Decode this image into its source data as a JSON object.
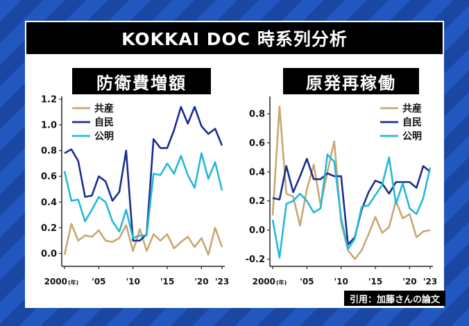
{
  "title": "KOKKAI DOC 時系列分析",
  "citation": "引用：加藤さんの論文",
  "colors": {
    "kyosan": "#c9a671",
    "jimin": "#1a2d8c",
    "komei": "#24b8d8"
  },
  "chart_data": [
    {
      "type": "line",
      "title": "防衛費増額",
      "x": [
        2000,
        2001,
        2002,
        2003,
        2004,
        2005,
        2006,
        2007,
        2008,
        2009,
        2010,
        2011,
        2012,
        2013,
        2014,
        2015,
        2016,
        2017,
        2018,
        2019,
        2020,
        2021,
        2022,
        2023
      ],
      "xticks": [
        2000,
        2005,
        2010,
        2015,
        2020,
        2023
      ],
      "xtick_labels": [
        "2000",
        "'05",
        "'10",
        "'15",
        "'20",
        "'23"
      ],
      "year_unit_label": "(年)",
      "ylim": [
        -0.1,
        1.2
      ],
      "yticks": [
        0.0,
        0.2,
        0.4,
        0.6,
        0.8,
        1.0,
        1.2
      ],
      "ytick_labels": [
        "0.0",
        "0.2",
        "0.4",
        "0.6",
        "0.8",
        "1.0",
        "1.2"
      ],
      "legend_position": "top-left",
      "series": [
        {
          "name": "共産",
          "color": "#c9a671",
          "values": [
            -0.01,
            0.23,
            0.1,
            0.14,
            0.13,
            0.18,
            0.1,
            0.09,
            0.12,
            0.22,
            0.02,
            0.19,
            0.02,
            0.15,
            0.1,
            0.15,
            0.04,
            0.09,
            0.13,
            0.05,
            0.12,
            -0.01,
            0.2,
            0.05
          ]
        },
        {
          "name": "自民",
          "color": "#1a2d8c",
          "values": [
            0.78,
            0.81,
            0.72,
            0.44,
            0.45,
            0.6,
            0.56,
            0.41,
            0.48,
            0.8,
            0.1,
            0.1,
            0.15,
            0.89,
            0.82,
            0.82,
            0.96,
            1.14,
            1.01,
            1.14,
            0.99,
            0.93,
            0.97,
            0.84
          ]
        },
        {
          "name": "公明",
          "color": "#24b8d8",
          "values": [
            0.64,
            0.41,
            0.42,
            0.25,
            0.34,
            0.44,
            0.4,
            0.25,
            0.17,
            0.34,
            0.12,
            0.14,
            0.14,
            0.62,
            0.61,
            0.7,
            0.62,
            0.76,
            0.61,
            0.51,
            0.78,
            0.58,
            0.71,
            0.49
          ]
        }
      ]
    },
    {
      "type": "line",
      "title": "原発再稼働",
      "x": [
        2000,
        2001,
        2002,
        2003,
        2004,
        2005,
        2006,
        2007,
        2008,
        2009,
        2010,
        2011,
        2012,
        2013,
        2014,
        2015,
        2016,
        2017,
        2018,
        2019,
        2020,
        2021,
        2022,
        2023
      ],
      "xticks": [
        2000,
        2005,
        2010,
        2015,
        2020,
        2023
      ],
      "xtick_labels": [
        "2000",
        "'05",
        "'10",
        "'15",
        "'20",
        "'23"
      ],
      "year_unit_label": "(年)",
      "ylim": [
        -0.25,
        0.9
      ],
      "yticks": [
        -0.2,
        0.0,
        0.2,
        0.4,
        0.6,
        0.8
      ],
      "ytick_labels": [
        "-0.2",
        "0.0",
        "0.2",
        "0.4",
        "0.6",
        "0.8"
      ],
      "legend_position": "top-right",
      "series": [
        {
          "name": "共産",
          "color": "#c9a671",
          "values": [
            0.1,
            0.85,
            0.25,
            0.23,
            0.03,
            0.28,
            0.45,
            0.17,
            0.4,
            0.61,
            0.05,
            -0.14,
            -0.2,
            -0.14,
            -0.03,
            0.09,
            -0.02,
            0.02,
            0.2,
            0.08,
            0.11,
            -0.05,
            -0.01,
            0.0
          ]
        },
        {
          "name": "自民",
          "color": "#1a2d8c",
          "values": [
            0.22,
            0.21,
            0.44,
            0.26,
            0.37,
            0.49,
            0.35,
            0.35,
            0.39,
            0.37,
            0.37,
            -0.1,
            -0.05,
            0.14,
            0.26,
            0.34,
            0.32,
            0.25,
            0.33,
            0.33,
            0.33,
            0.29,
            0.44,
            0.4
          ]
        },
        {
          "name": "公明",
          "color": "#24b8d8",
          "values": [
            0.07,
            -0.19,
            0.18,
            0.2,
            0.25,
            0.2,
            0.12,
            0.15,
            0.52,
            0.47,
            0.08,
            -0.13,
            -0.06,
            0.16,
            0.17,
            0.24,
            0.31,
            0.5,
            0.18,
            0.32,
            0.15,
            0.11,
            0.22,
            0.43
          ]
        }
      ]
    }
  ]
}
